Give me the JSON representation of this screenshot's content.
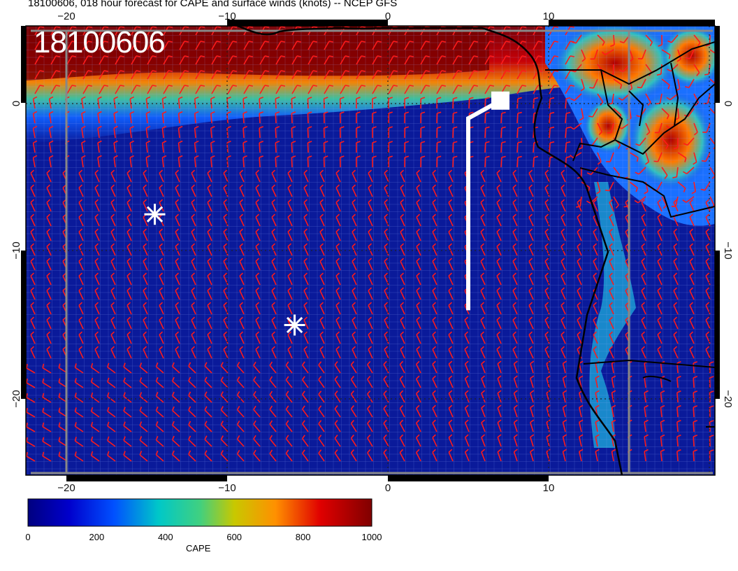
{
  "title": "18100606, 018 hour forecast for CAPE and surface winds (knots) -- NCEP GFS",
  "stamp": "18100606",
  "axes": {
    "x_ticks": [
      "−20",
      "−10",
      "0",
      "10"
    ],
    "y_ticks": [
      "0",
      "−10",
      "−20"
    ]
  },
  "colorbar": {
    "label": "CAPE",
    "ticks": [
      "0",
      "200",
      "400",
      "600",
      "800",
      "1000"
    ],
    "range": [
      0,
      1000
    ]
  },
  "colors": {
    "wind_barb": "#ff1a1a",
    "marker": "#ffffff",
    "coast": "#000000",
    "low_cape": "#0a1a9a",
    "high_cape": "#7a0000"
  },
  "markers": [
    {
      "name": "asterisk",
      "lon": -14.5,
      "lat": -7.5
    },
    {
      "name": "asterisk",
      "lon": -5.8,
      "lat": -15.0
    }
  ],
  "flight_track": [
    {
      "lon": 7.0,
      "lat": 0.2
    },
    {
      "lon": 5.0,
      "lat": -1.0
    },
    {
      "lon": 5.0,
      "lat": -14.0
    }
  ]
}
